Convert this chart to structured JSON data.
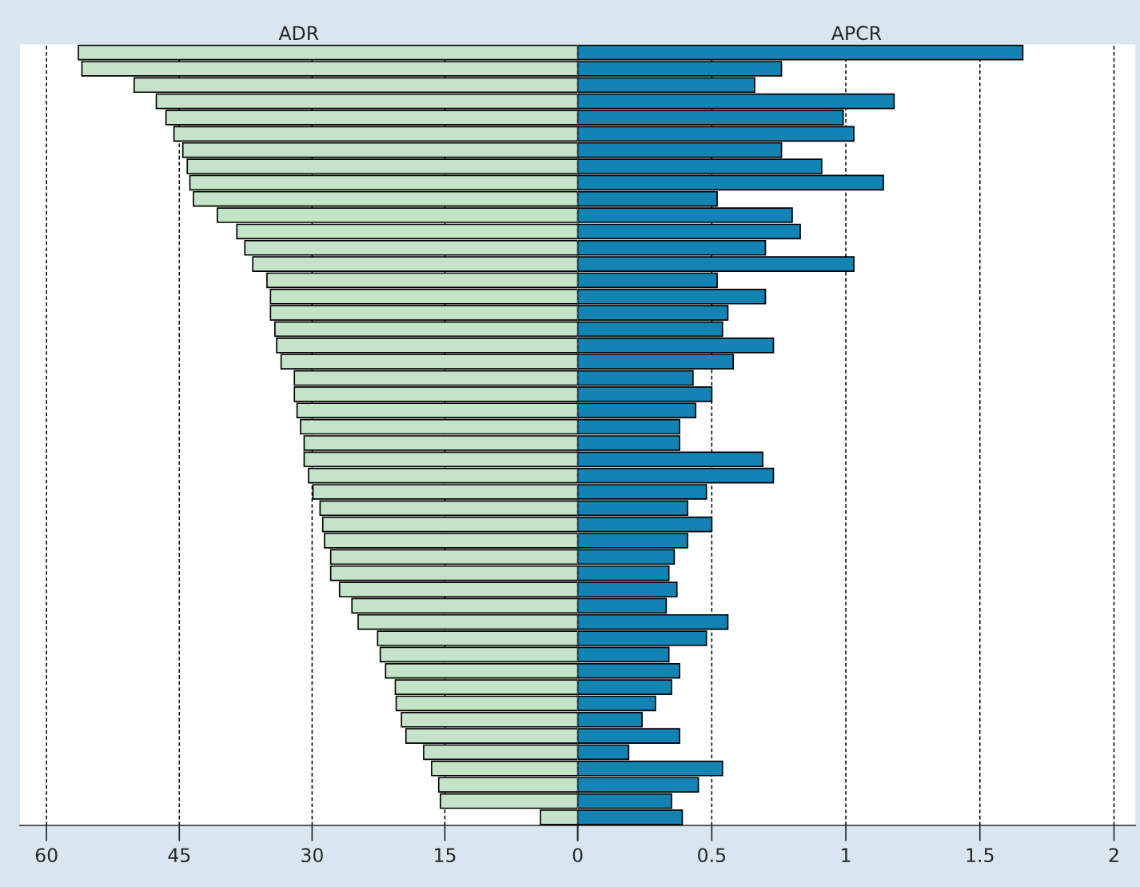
{
  "chart_data": [
    {
      "type": "bar",
      "orientation": "horizontal",
      "title": "ADR",
      "color": "#c5e3c8",
      "grid": "x",
      "tick_labels": "x",
      "categories": [
        null,
        null,
        null,
        null,
        null,
        null,
        null,
        null,
        null,
        null,
        null,
        null,
        null,
        null,
        null,
        null,
        null,
        null,
        null,
        null,
        null,
        null,
        null,
        null,
        null,
        null,
        null,
        null,
        null,
        null,
        null,
        null,
        null,
        null,
        null,
        null,
        null,
        null,
        null,
        null,
        null,
        null,
        null,
        null,
        null,
        null,
        null,
        null
      ],
      "values": [
        56.4,
        56.0,
        50.1,
        47.6,
        46.5,
        45.6,
        44.6,
        44.1,
        43.8,
        43.4,
        40.7,
        38.5,
        37.6,
        36.7,
        35.1,
        34.7,
        34.7,
        34.2,
        34.0,
        33.5,
        32.0,
        32.0,
        31.7,
        31.3,
        30.9,
        30.9,
        30.4,
        29.9,
        29.1,
        28.8,
        28.6,
        27.9,
        27.9,
        26.9,
        25.5,
        24.8,
        22.6,
        22.3,
        21.7,
        20.6,
        20.5,
        19.9,
        19.4,
        17.4,
        16.5,
        15.7,
        15.5,
        4.2
      ],
      "xlim": [
        63,
        0
      ],
      "xticks": [
        60,
        45,
        30,
        15,
        0
      ]
    },
    {
      "type": "bar",
      "orientation": "horizontal",
      "title": "APCR",
      "color": "#1283b3",
      "grid": "x",
      "tick_labels": "x",
      "categories": [
        null,
        null,
        null,
        null,
        null,
        null,
        null,
        null,
        null,
        null,
        null,
        null,
        null,
        null,
        null,
        null,
        null,
        null,
        null,
        null,
        null,
        null,
        null,
        null,
        null,
        null,
        null,
        null,
        null,
        null,
        null,
        null,
        null,
        null,
        null,
        null,
        null,
        null,
        null,
        null,
        null,
        null,
        null,
        null,
        null,
        null,
        null,
        null
      ],
      "values": [
        1.66,
        0.76,
        0.66,
        1.18,
        0.99,
        1.03,
        0.76,
        0.91,
        1.14,
        0.52,
        0.8,
        0.83,
        0.7,
        1.03,
        0.52,
        0.7,
        0.56,
        0.54,
        0.73,
        0.58,
        0.43,
        0.5,
        0.44,
        0.38,
        0.38,
        0.69,
        0.73,
        0.48,
        0.41,
        0.5,
        0.41,
        0.36,
        0.34,
        0.37,
        0.33,
        0.56,
        0.48,
        0.34,
        0.38,
        0.35,
        0.29,
        0.24,
        0.38,
        0.19,
        0.54,
        0.45,
        0.35,
        0.39
      ],
      "xlim": [
        0,
        2.08
      ],
      "xticks": [
        {
          "value": 0,
          "label": null
        },
        0.5,
        1,
        1.5,
        2
      ]
    }
  ]
}
